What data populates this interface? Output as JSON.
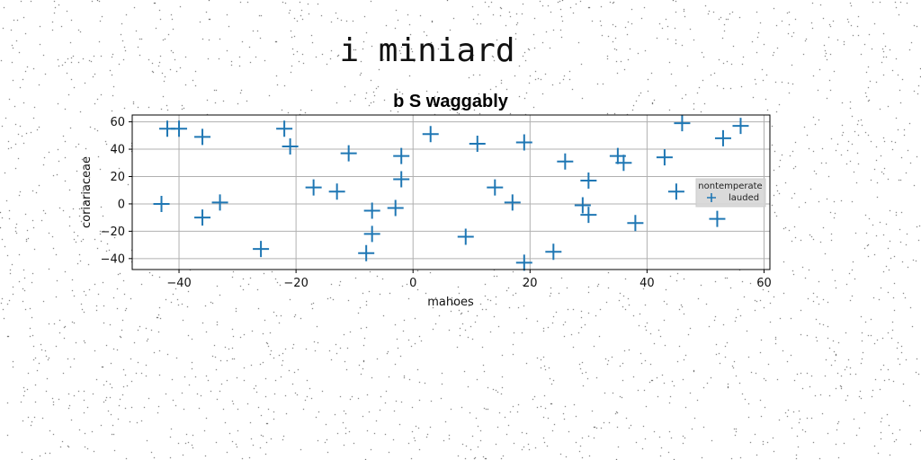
{
  "figure": {
    "suptitle": "i miniard"
  },
  "chart_data": {
    "type": "scatter",
    "title": "b S waggably",
    "xlabel": "mahoes",
    "ylabel": "coriariaceae",
    "xlim": [
      -48,
      61
    ],
    "ylim": [
      -48,
      65
    ],
    "xticks": [
      -40,
      -20,
      0,
      20,
      40,
      60
    ],
    "yticks": [
      -40,
      -20,
      0,
      20,
      40,
      60
    ],
    "grid": true,
    "legend": {
      "title": "nontemperate",
      "placement": "center-right",
      "entries": [
        "lauded"
      ]
    },
    "series": [
      {
        "name": "lauded",
        "marker": "plus",
        "color": "#1f77b4",
        "points": [
          [
            -43,
            0
          ],
          [
            -42,
            55
          ],
          [
            -40,
            55
          ],
          [
            -36,
            49
          ],
          [
            -36,
            -10
          ],
          [
            -33,
            1
          ],
          [
            -26,
            -33
          ],
          [
            -22,
            55
          ],
          [
            -21,
            42
          ],
          [
            -17,
            12
          ],
          [
            -13,
            9
          ],
          [
            -11,
            37
          ],
          [
            -8,
            -36
          ],
          [
            -7,
            -5
          ],
          [
            -7,
            -22
          ],
          [
            -3,
            -3
          ],
          [
            -2,
            35
          ],
          [
            -2,
            18
          ],
          [
            3,
            51
          ],
          [
            9,
            -24
          ],
          [
            11,
            44
          ],
          [
            14,
            12
          ],
          [
            17,
            1
          ],
          [
            19,
            45
          ],
          [
            19,
            -43
          ],
          [
            24,
            -35
          ],
          [
            26,
            31
          ],
          [
            29,
            -1
          ],
          [
            30,
            17
          ],
          [
            30,
            -8
          ],
          [
            35,
            35
          ],
          [
            36,
            30
          ],
          [
            38,
            -14
          ],
          [
            43,
            34
          ],
          [
            45,
            9
          ],
          [
            46,
            59
          ],
          [
            52,
            -11
          ],
          [
            53,
            48
          ],
          [
            56,
            57
          ]
        ]
      }
    ]
  }
}
